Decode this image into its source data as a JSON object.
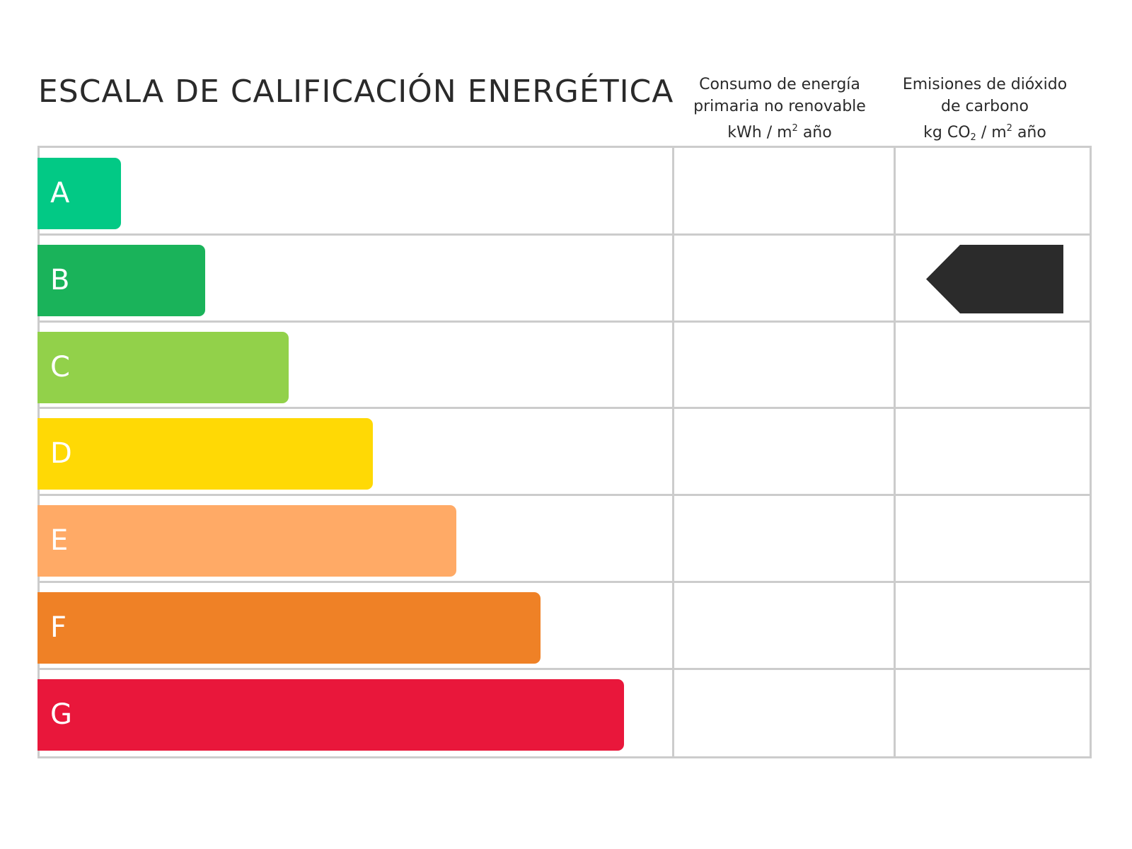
{
  "title": "ESCALA DE CALIFICACIÓN ENERGÉTICA",
  "columns": {
    "energy": {
      "line1": "Consumo de energía",
      "line2": "primaria no renovable",
      "unit_a": "kWh / m",
      "unit_sup": "2",
      "unit_b": " año"
    },
    "emissions": {
      "line1": "Emisiones de dióxido",
      "line2": "de carbono",
      "unit_a": "kg CO",
      "unit_sub": "2",
      "unit_b": " / m",
      "unit_sup": "2",
      "unit_c": " año"
    }
  },
  "ratings": [
    {
      "letter": "A",
      "color": "#02c985"
    },
    {
      "letter": "B",
      "color": "#1ab35a"
    },
    {
      "letter": "C",
      "color": "#92d14a"
    },
    {
      "letter": "D",
      "color": "#ffd905"
    },
    {
      "letter": "E",
      "color": "#ffaa66"
    },
    {
      "letter": "F",
      "color": "#ef8126"
    },
    {
      "letter": "G",
      "color": "#e9173b"
    }
  ],
  "indicator": {
    "column": "emissions",
    "rating": "B",
    "color": "#2b2b2b",
    "icon": "arrow-left-tag"
  }
}
